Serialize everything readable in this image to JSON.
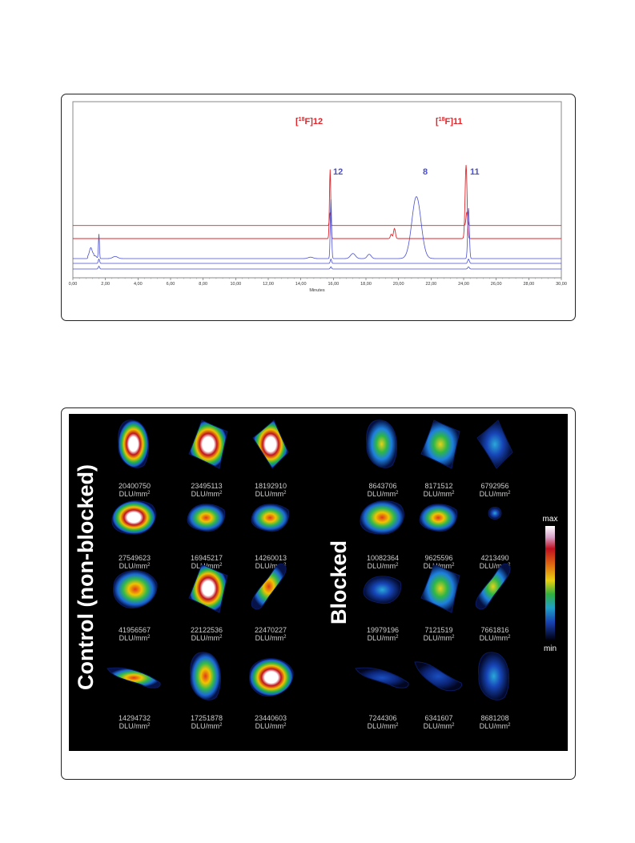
{
  "chromatogram": {
    "x_axis_title": "Minutes",
    "peak_labels": {
      "f12_prefix": "[",
      "f12_mass": "18",
      "f12_suffix": "F]12",
      "f11_prefix": "[",
      "f11_mass": "18",
      "f11_suffix": "F]11",
      "p12": "12",
      "p8": "8",
      "p11": "11"
    },
    "colors": {
      "radio": "#e0262b",
      "uv": "#4a4fd0",
      "frame": "#7f7f7f"
    }
  },
  "chart_data": {
    "type": "line",
    "xlabel": "Minutes",
    "ylabel": "",
    "xlim": [
      0,
      30
    ],
    "x_ticks": [
      "0,00",
      "2,00",
      "4,00",
      "6,00",
      "8,00",
      "10,00",
      "12,00",
      "14,00",
      "16,00",
      "18,00",
      "20,00",
      "22,00",
      "24,00",
      "26,00",
      "28,00",
      "30,00"
    ],
    "grid": false,
    "series": [
      {
        "trace": "radio-trace-upper",
        "color": "#e0262b",
        "baseline": 0.35,
        "peaks": [
          [
            15.8,
            0.9,
            0.04
          ],
          [
            24.2,
            0.95,
            0.05
          ]
        ]
      },
      {
        "trace": "radio-trace-lower",
        "color": "#e0262b",
        "baseline": 0.0,
        "peaks": [
          [
            15.8,
            4.8,
            0.04
          ],
          [
            19.75,
            0.7,
            0.06
          ],
          [
            19.55,
            0.3,
            0.05
          ],
          [
            24.15,
            5.1,
            0.06
          ]
        ]
      },
      {
        "trace": "uv-trace-1",
        "color": "#4a4fd0",
        "baseline": 0.0,
        "peaks": [
          [
            1.1,
            0.6,
            0.08
          ],
          [
            1.6,
            1.7,
            0.03
          ],
          [
            1.35,
            0.2,
            0.1
          ],
          [
            2.6,
            0.15,
            0.15
          ],
          [
            14.6,
            0.1,
            0.15
          ],
          [
            15.85,
            4.1,
            0.04
          ],
          [
            17.2,
            0.35,
            0.15
          ],
          [
            18.2,
            0.3,
            0.12
          ],
          [
            21.1,
            4.3,
            0.28
          ],
          [
            24.3,
            3.5,
            0.05
          ]
        ]
      },
      {
        "trace": "uv-trace-2",
        "color": "#4a4fd0",
        "baseline": 0.0,
        "peaks": [
          [
            1.6,
            0.3,
            0.04
          ],
          [
            15.85,
            0.3,
            0.04
          ],
          [
            24.3,
            0.3,
            0.05
          ]
        ]
      },
      {
        "trace": "uv-trace-3",
        "color": "#4a4fd0",
        "baseline": 0.0,
        "peaks": [
          [
            1.6,
            0.2,
            0.04
          ],
          [
            15.85,
            0.15,
            0.04
          ],
          [
            24.3,
            0.15,
            0.05
          ]
        ]
      }
    ]
  },
  "autoradiography": {
    "group_control": "Control (non-blocked)",
    "group_blocked": "Blocked",
    "unit_base": "DLU/mm",
    "unit_exp": "2",
    "scale_max": "max",
    "scale_min": "min",
    "control": [
      {
        "value": "20400750",
        "intensity": 0.85,
        "shape": "oval-tall"
      },
      {
        "value": "23495113",
        "intensity": 0.95,
        "shape": "wedge"
      },
      {
        "value": "18192910",
        "intensity": 0.8,
        "shape": "wedge-r"
      },
      {
        "value": "27549623",
        "intensity": 1.0,
        "shape": "blob"
      },
      {
        "value": "16945217",
        "intensity": 0.75,
        "shape": "blob-small"
      },
      {
        "value": "14260013",
        "intensity": 0.65,
        "shape": "blob-small"
      },
      {
        "value": "41956567",
        "intensity": 0.7,
        "shape": "oval-wide"
      },
      {
        "value": "22122536",
        "intensity": 0.85,
        "shape": "wedge"
      },
      {
        "value": "22470227",
        "intensity": 0.7,
        "shape": "curve"
      },
      {
        "value": "14294732",
        "intensity": 0.6,
        "shape": "strip"
      },
      {
        "value": "17251878",
        "intensity": 0.75,
        "shape": "oval-tall"
      },
      {
        "value": "23440603",
        "intensity": 0.9,
        "shape": "oval-wide"
      }
    ],
    "blocked": [
      {
        "value": "8643706",
        "intensity": 0.55,
        "shape": "oval-tall"
      },
      {
        "value": "8171512",
        "intensity": 0.45,
        "shape": "wedge"
      },
      {
        "value": "6792956",
        "intensity": 0.35,
        "shape": "wedge-r"
      },
      {
        "value": "10082364",
        "intensity": 0.7,
        "shape": "blob"
      },
      {
        "value": "9625596",
        "intensity": 0.65,
        "shape": "blob-small"
      },
      {
        "value": "4213490",
        "intensity": 0.3,
        "shape": "dot"
      },
      {
        "value": "19979196",
        "intensity": 0.3,
        "shape": "blob-small"
      },
      {
        "value": "7121519",
        "intensity": 0.45,
        "shape": "wedge"
      },
      {
        "value": "7661816",
        "intensity": 0.5,
        "shape": "curve"
      },
      {
        "value": "7244306",
        "intensity": 0.2,
        "shape": "strip"
      },
      {
        "value": "6341607",
        "intensity": 0.25,
        "shape": "strip-curve"
      },
      {
        "value": "8681208",
        "intensity": 0.4,
        "shape": "oval-tall"
      }
    ]
  }
}
